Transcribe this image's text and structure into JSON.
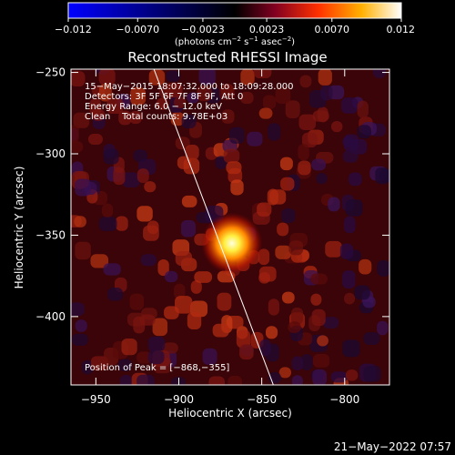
{
  "chart_data": {
    "type": "heatmap",
    "title": "Reconstructed RHESSI Image",
    "xlabel": "Heliocentric X (arcsec)",
    "ylabel": "Heliocentric Y (arcsec)",
    "xlim": [
      -965,
      -773
    ],
    "ylim": [
      -442,
      -248
    ],
    "xticks": [
      -950,
      -900,
      -850,
      -800
    ],
    "yticks": [
      -250,
      -300,
      -350,
      -400
    ],
    "colorbar": {
      "min": -0.012,
      "max": 0.012,
      "tick_values": [
        -0.012,
        -0.007,
        -0.0023,
        0.0023,
        0.007,
        0.012
      ],
      "tick_labels": [
        "−0.012",
        "−0.0070",
        "−0.0023",
        "0.0023",
        "0.0070",
        "0.012"
      ],
      "unit_prefix": "(photons cm",
      "unit_sup1": "−2",
      "unit_mid": " s",
      "unit_sup2": "−1",
      "unit_mid2": " asec",
      "unit_sup3": "−2",
      "unit_suffix": ")"
    },
    "annotations": [
      "15−May−2015 18:07:32.000 to 18:09:28.000",
      "Detectors: 3F 5F 6F 7F 8F 9F, Att 0",
      "Energy Range: 6.0 − 12.0 keV",
      "Clean    Total counts: 9.78E+03"
    ],
    "peak": {
      "label": "Position of Peak = [−868,−355]",
      "x": -868,
      "y": -355
    },
    "limb_line": [
      {
        "x": -915,
        "y": -248
      },
      {
        "x": -843,
        "y": -442
      }
    ],
    "source": {
      "x": -868,
      "y": -355,
      "peak_value": 0.012
    }
  },
  "timestamp": "21−May−2022 07:57"
}
